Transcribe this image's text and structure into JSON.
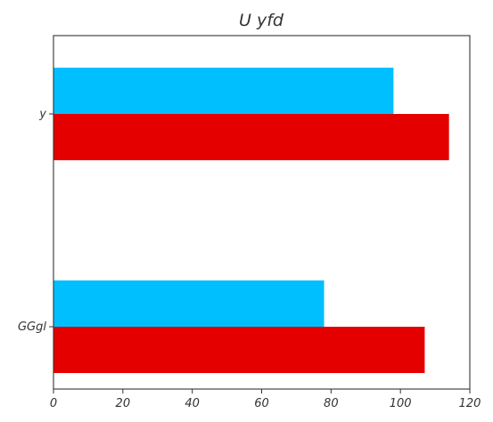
{
  "chart_data": {
    "type": "bar",
    "orientation": "horizontal",
    "title": "U yfd",
    "xlabel": "",
    "ylabel": "",
    "categories": [
      "y",
      "GGgl"
    ],
    "series": [
      {
        "color": "#00BFFF",
        "values": [
          98,
          78
        ]
      },
      {
        "color": "#E50000",
        "values": [
          114,
          107
        ]
      }
    ],
    "xlim": [
      0,
      120
    ],
    "xticks": [
      0,
      20,
      40,
      60,
      80,
      100,
      120
    ],
    "grid": false,
    "legend": "none"
  }
}
